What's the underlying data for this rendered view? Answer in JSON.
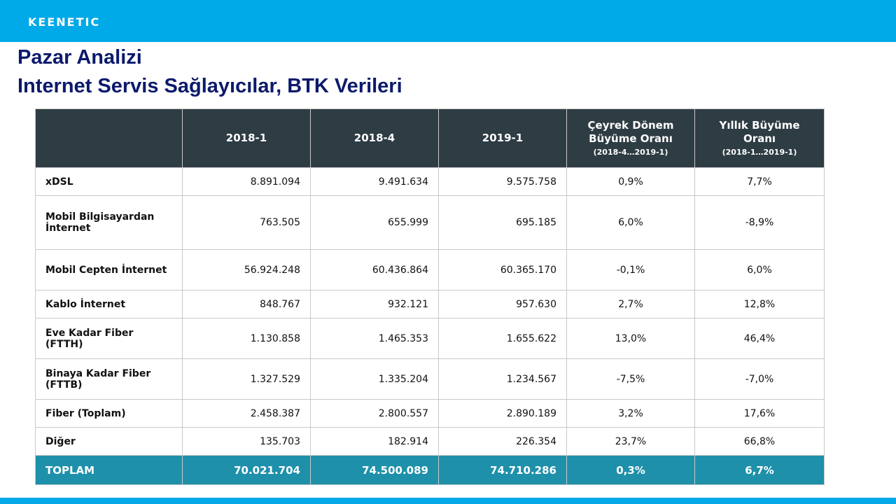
{
  "brand": {
    "logo": "KEENETIC"
  },
  "slide": {
    "title": "Pazar Analizi",
    "subtitle": "Internet Servis Sağlayıcılar, BTK Verileri"
  },
  "table": {
    "headers": [
      "",
      "2018-1",
      "2018-4",
      "2019-1"
    ],
    "growth_quarter_header": {
      "label": "Çeyrek Dönem Büyüme Oranı",
      "sub": "(2018-4…2019-1)"
    },
    "growth_year_header": {
      "label": "Yıllık Büyüme Oranı",
      "sub": "(2018-1…2019-1)"
    },
    "rows": [
      {
        "label": "xDSL",
        "v2018_1": "8.891.094",
        "v2018_4": "9.491.634",
        "v2019_1": "9.575.758",
        "quarter": "0,9%",
        "year": "7,7%"
      },
      {
        "label": "Mobil Bilgisayardan İnternet",
        "v2018_1": "763.505",
        "v2018_4": "655.999",
        "v2019_1": "695.185",
        "quarter": "6,0%",
        "year": "-8,9%"
      },
      {
        "label": "Mobil Cepten İnternet",
        "v2018_1": "56.924.248",
        "v2018_4": "60.436.864",
        "v2019_1": "60.365.170",
        "quarter": "-0,1%",
        "year": "6,0%"
      },
      {
        "label": "Kablo İnternet",
        "v2018_1": "848.767",
        "v2018_4": "932.121",
        "v2019_1": "957.630",
        "quarter": "2,7%",
        "year": "12,8%"
      },
      {
        "label": "Eve Kadar Fiber (FTTH)",
        "v2018_1": "1.130.858",
        "v2018_4": "1.465.353",
        "v2019_1": "1.655.622",
        "quarter": "13,0%",
        "year": "46,4%"
      },
      {
        "label": "Binaya Kadar Fiber (FTTB)",
        "v2018_1": "1.327.529",
        "v2018_4": "1.335.204",
        "v2019_1": "1.234.567",
        "quarter": "-7,5%",
        "year": "-7,0%"
      },
      {
        "label": "Fiber (Toplam)",
        "v2018_1": "2.458.387",
        "v2018_4": "2.800.557",
        "v2019_1": "2.890.189",
        "quarter": "3,2%",
        "year": "17,6%"
      },
      {
        "label": "Diğer",
        "v2018_1": "135.703",
        "v2018_4": "182.914",
        "v2019_1": "226.354",
        "quarter": "23,7%",
        "year": "66,8%"
      }
    ],
    "total": {
      "label": "TOPLAM",
      "v2018_1": "70.021.704",
      "v2018_4": "74.500.089",
      "v2019_1": "74.710.286",
      "quarter": "0,3%",
      "year": "6,7%"
    }
  },
  "colors": {
    "topbar": "#00a9e8",
    "title": "#0c1a6b",
    "header_bg": "#2e3c44",
    "total_bg": "#1f90aa"
  }
}
